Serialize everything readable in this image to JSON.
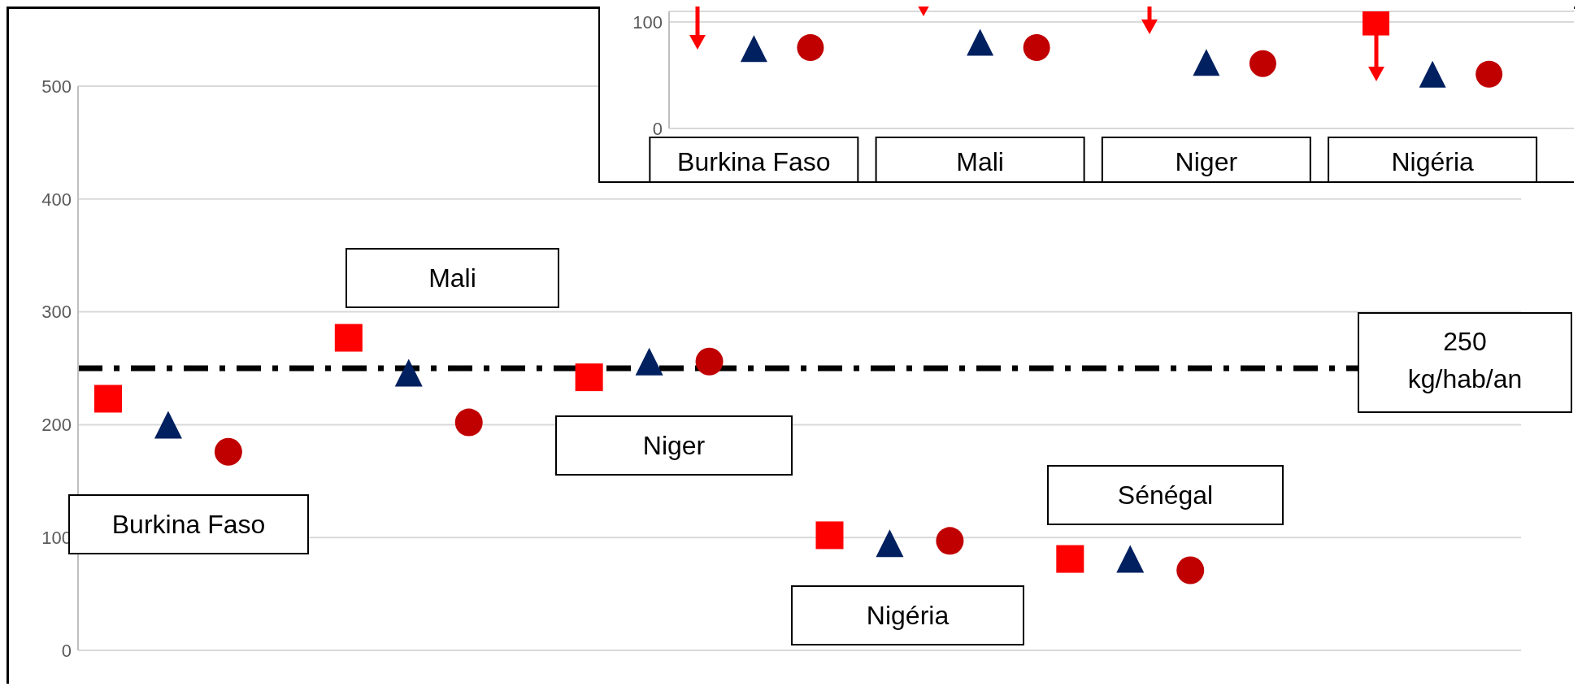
{
  "chart_data": [
    {
      "type": "scatter",
      "categories": [
        null,
        null,
        null,
        null,
        null,
        null,
        null,
        null,
        null,
        null,
        null,
        null,
        null,
        null,
        null,
        null,
        null,
        null,
        null,
        null,
        null,
        null,
        null,
        null
      ],
      "series": [
        {
          "color": "#ff0000",
          "marker": "square",
          "values": [
            223,
            null,
            null,
            null,
            277,
            null,
            null,
            null,
            242,
            null,
            null,
            null,
            102,
            null,
            null,
            null,
            81,
            null,
            null,
            null,
            null,
            null,
            null,
            null
          ]
        },
        {
          "color": "#002060",
          "marker": "triangle",
          "values": [
            null,
            200,
            null,
            null,
            null,
            246,
            null,
            null,
            null,
            256,
            null,
            null,
            null,
            95,
            null,
            null,
            null,
            81,
            null,
            null,
            null,
            null,
            null,
            null
          ]
        },
        {
          "color": "#c00000",
          "marker": "circle",
          "values": [
            null,
            null,
            176,
            null,
            null,
            null,
            202,
            null,
            null,
            null,
            256,
            null,
            null,
            null,
            97,
            null,
            null,
            null,
            71,
            null,
            null,
            null,
            null,
            null
          ]
        }
      ],
      "annotations": [
        "Burkina Faso",
        "Mali",
        "Niger",
        "Nigéria",
        "Sénégal"
      ],
      "ylim": [
        0,
        500
      ],
      "yticks": [
        0,
        100,
        200,
        300,
        400,
        500
      ],
      "grid": "y",
      "legend": false,
      "ref_lines": [
        {
          "axis": "y",
          "value": 250,
          "label": "250 kg/hab/an",
          "color": "#000000",
          "line_style": "dashed"
        }
      ]
    },
    {
      "type": "scatter",
      "categories": [
        null,
        "Burkina Faso",
        null,
        null,
        null,
        "Mali",
        null,
        null,
        null,
        "Niger",
        null,
        null,
        null,
        "Nigéria",
        null,
        null
      ],
      "series": [
        {
          "color": "#ff0000",
          "marker": "square",
          "values": [
            null,
            null,
            null,
            null,
            null,
            null,
            null,
            null,
            null,
            null,
            null,
            null,
            100,
            null,
            null,
            null
          ]
        },
        {
          "color": "#002060",
          "marker": "triangle",
          "values": [
            null,
            75,
            null,
            null,
            null,
            81,
            null,
            null,
            null,
            62,
            null,
            null,
            null,
            51,
            null,
            null
          ]
        },
        {
          "color": "#c00000",
          "marker": "circle",
          "values": [
            null,
            null,
            76,
            null,
            null,
            null,
            76,
            null,
            null,
            null,
            61,
            null,
            null,
            null,
            51,
            null
          ]
        }
      ],
      "ylim": [
        0,
        110
      ],
      "yticks": [
        0,
        100
      ],
      "grid": "y",
      "legend": false
    }
  ]
}
